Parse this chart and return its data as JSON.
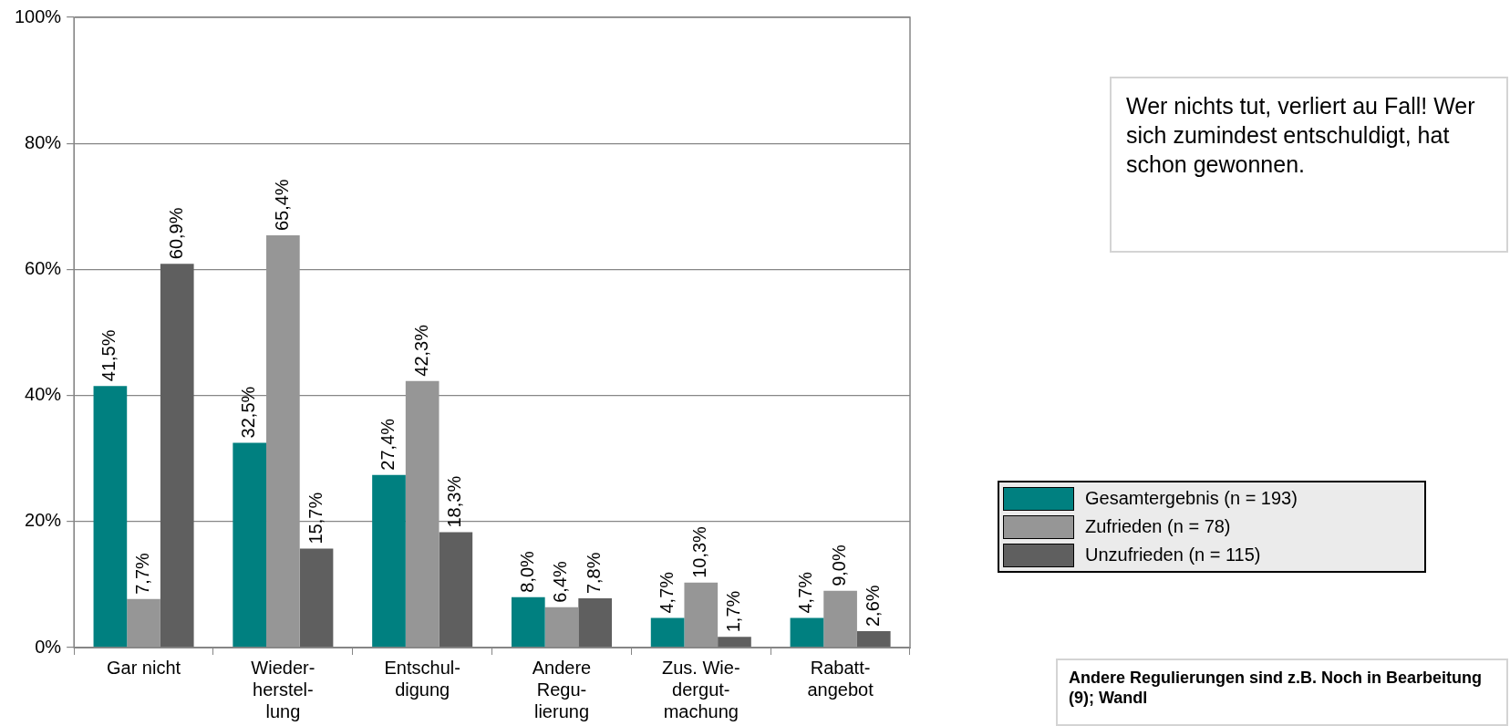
{
  "chart_data": {
    "type": "bar",
    "categories": [
      "Gar nicht",
      "Wieder-\nherstel-\nlung",
      "Entschul-\ndigung",
      "Andere\nRegu-\nlierung",
      "Zus. Wie-\ndergut-\nmachung",
      "Rabatt-\nangebot"
    ],
    "series": [
      {
        "name": "Gesamtergebnis (n = 193)",
        "color": "#008080",
        "values": [
          41.5,
          32.5,
          27.4,
          8.0,
          4.7,
          4.7
        ],
        "value_labels": [
          "41,5%",
          "32,5%",
          "27,4%",
          "8,0%",
          "4,7%",
          "4,7%"
        ]
      },
      {
        "name": "Zufrieden (n = 78)",
        "color": "#969696",
        "values": [
          7.7,
          65.4,
          42.3,
          6.4,
          10.3,
          9.0
        ],
        "value_labels": [
          "7,7%",
          "65,4%",
          "42,3%",
          "6,4%",
          "10,3%",
          "9,0%"
        ]
      },
      {
        "name": "Unzufrieden (n = 115)",
        "color": "#5f5f5f",
        "values": [
          60.9,
          15.7,
          18.3,
          7.8,
          1.7,
          2.6
        ],
        "value_labels": [
          "60,9%",
          "15,7%",
          "18,3%",
          "7,8%",
          "1,7%",
          "2,6%"
        ]
      }
    ],
    "ylim": [
      0,
      100
    ],
    "yticks": [
      {
        "value": 0,
        "label": "0%"
      },
      {
        "value": 20,
        "label": "20%"
      },
      {
        "value": 40,
        "label": "40%"
      },
      {
        "value": 60,
        "label": "60%"
      },
      {
        "value": 80,
        "label": "80%"
      },
      {
        "value": 100,
        "label": "100%"
      }
    ],
    "grid": "y",
    "legend": "right",
    "annotations": [
      "Wer nichts tut, verliert au Fall! Wer sich zumindest entschuldigt, hat schon gewonnen.",
      "Andere Regulierungen sind z.B. Noch in Bearbeitung (9); Wandl"
    ]
  }
}
